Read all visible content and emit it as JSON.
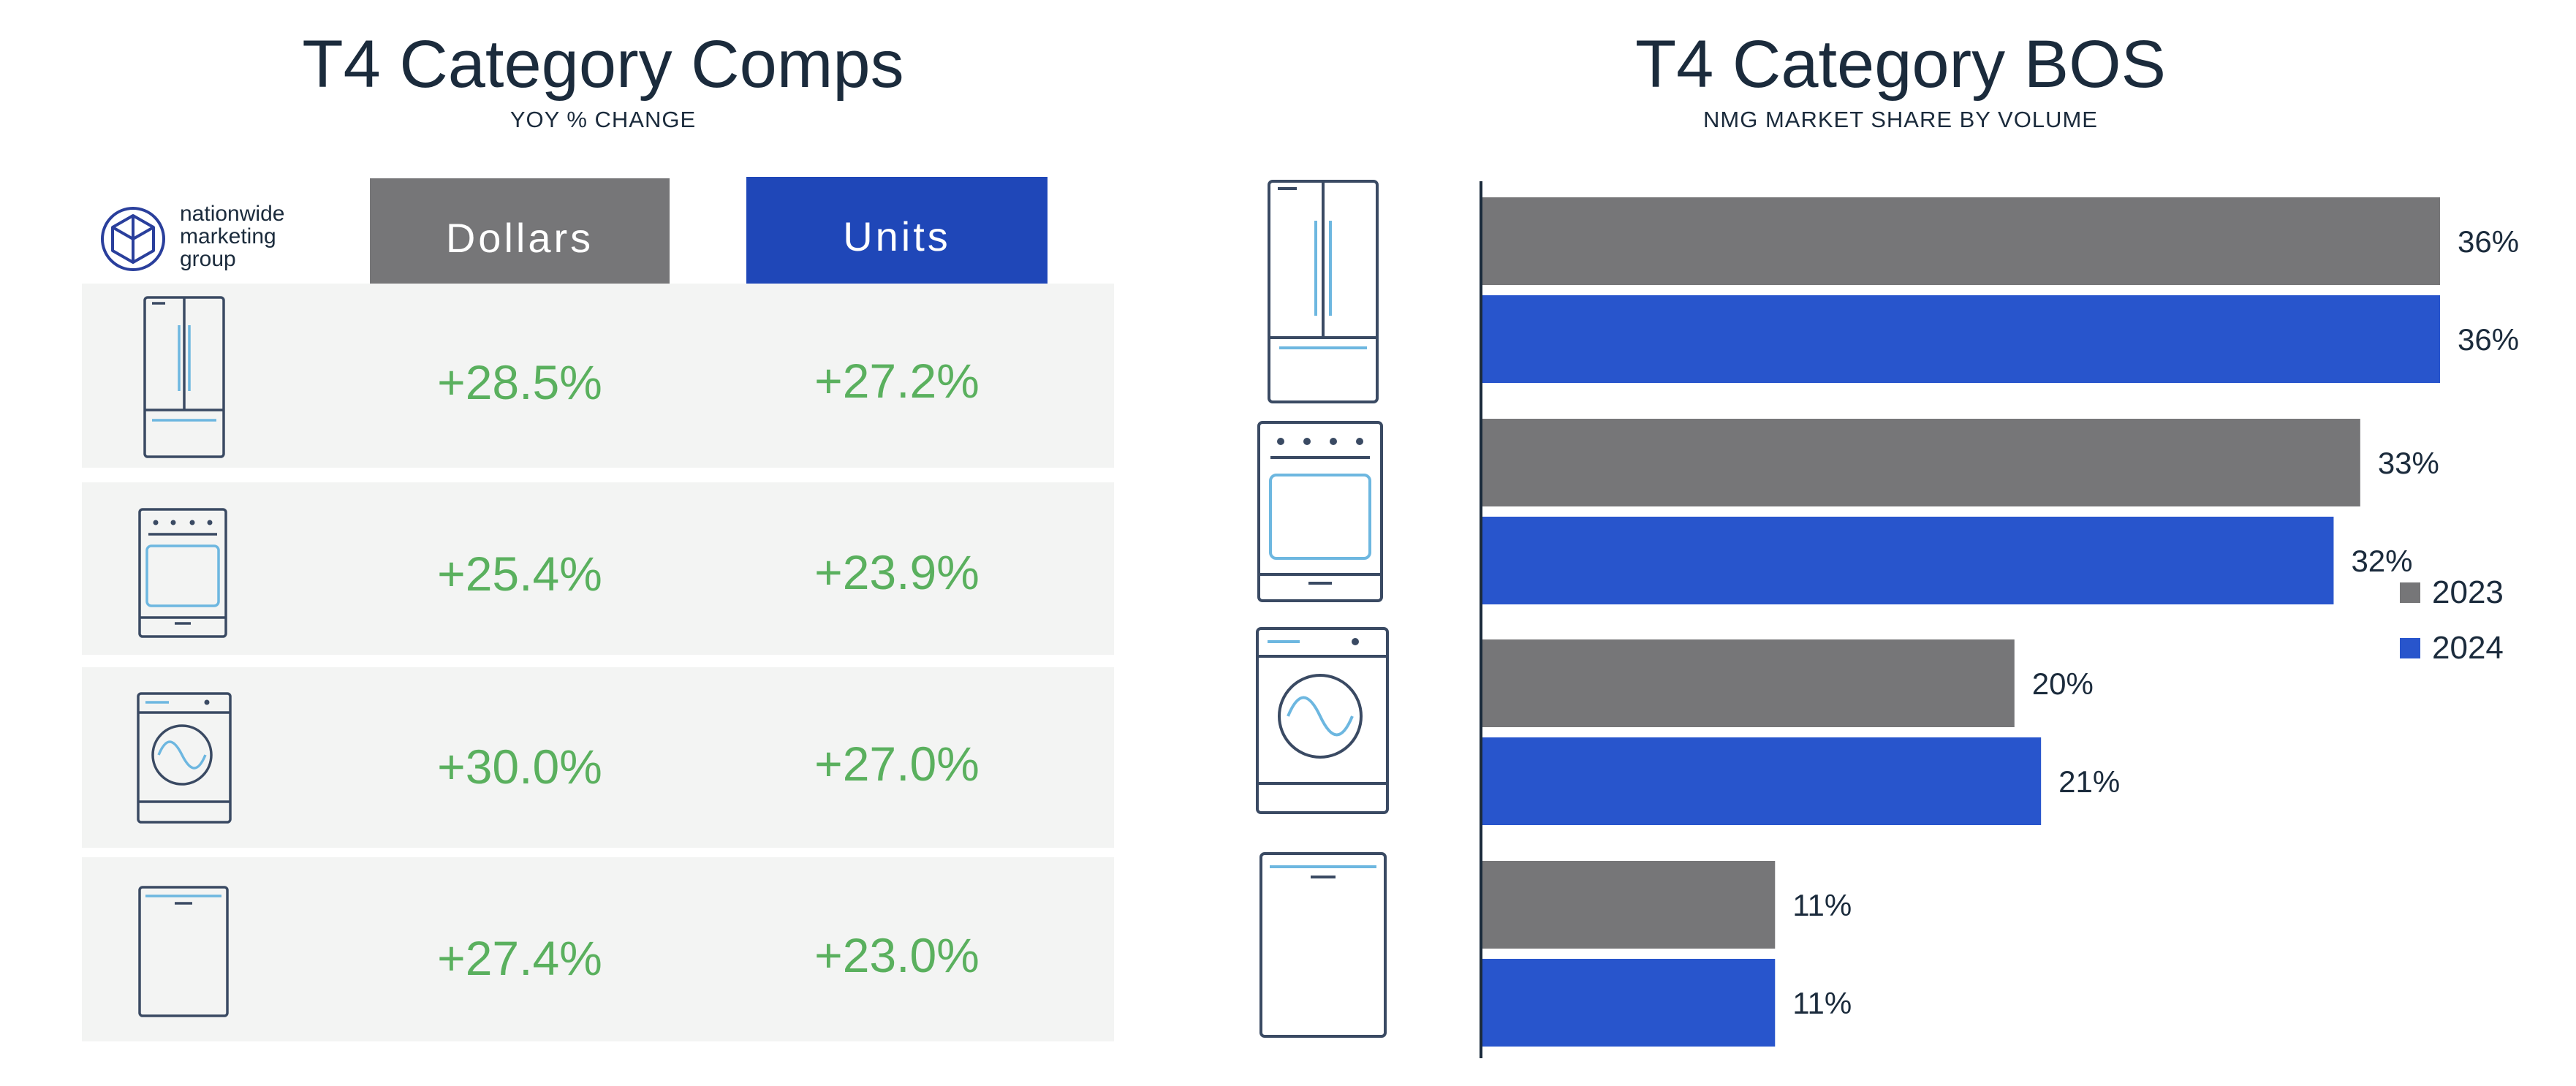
{
  "left": {
    "title": "T4 Category Comps",
    "subtitle": "YOY % CHANGE",
    "logo_text": [
      "nationwide",
      "marketing",
      "group"
    ],
    "headers": {
      "dollars": "Dollars",
      "units": "Units"
    },
    "rows": [
      {
        "icon": "refrigerator-icon",
        "dollars": "+28.5%",
        "units": "+27.2%"
      },
      {
        "icon": "range-oven-icon",
        "dollars": "+25.4%",
        "units": "+23.9%"
      },
      {
        "icon": "washer-icon",
        "dollars": "+30.0%",
        "units": "+27.0%"
      },
      {
        "icon": "dishwasher-icon",
        "dollars": "+27.4%",
        "units": "+23.0%"
      }
    ]
  },
  "chart_data": {
    "type": "bar",
    "orientation": "horizontal",
    "title": "T4 Category BOS",
    "subtitle": "NMG MARKET SHARE BY VOLUME",
    "categories": [
      "refrigerator-icon",
      "range-oven-icon",
      "washer-icon",
      "dishwasher-icon"
    ],
    "series": [
      {
        "name": "2023",
        "color": "#767678",
        "values": [
          36,
          33,
          20,
          11
        ],
        "labels": [
          "36%",
          "33%",
          "20%",
          "11%"
        ]
      },
      {
        "name": "2024",
        "color": "#2855cc",
        "values": [
          36,
          32,
          21,
          11
        ],
        "labels": [
          "36%",
          "32%",
          "21%",
          "11%"
        ]
      }
    ],
    "legend_position": "right",
    "xlim": [
      0,
      40
    ],
    "grid": false
  },
  "colors": {
    "dollars_header": "#767678",
    "units_header": "#1f47b8",
    "gray": "#767678",
    "blue": "#2855cc",
    "green": "#5ab05e",
    "row_bg": "#f3f4f3",
    "icon_stroke": "#3a4a63",
    "icon_accent": "#6db7e0"
  }
}
